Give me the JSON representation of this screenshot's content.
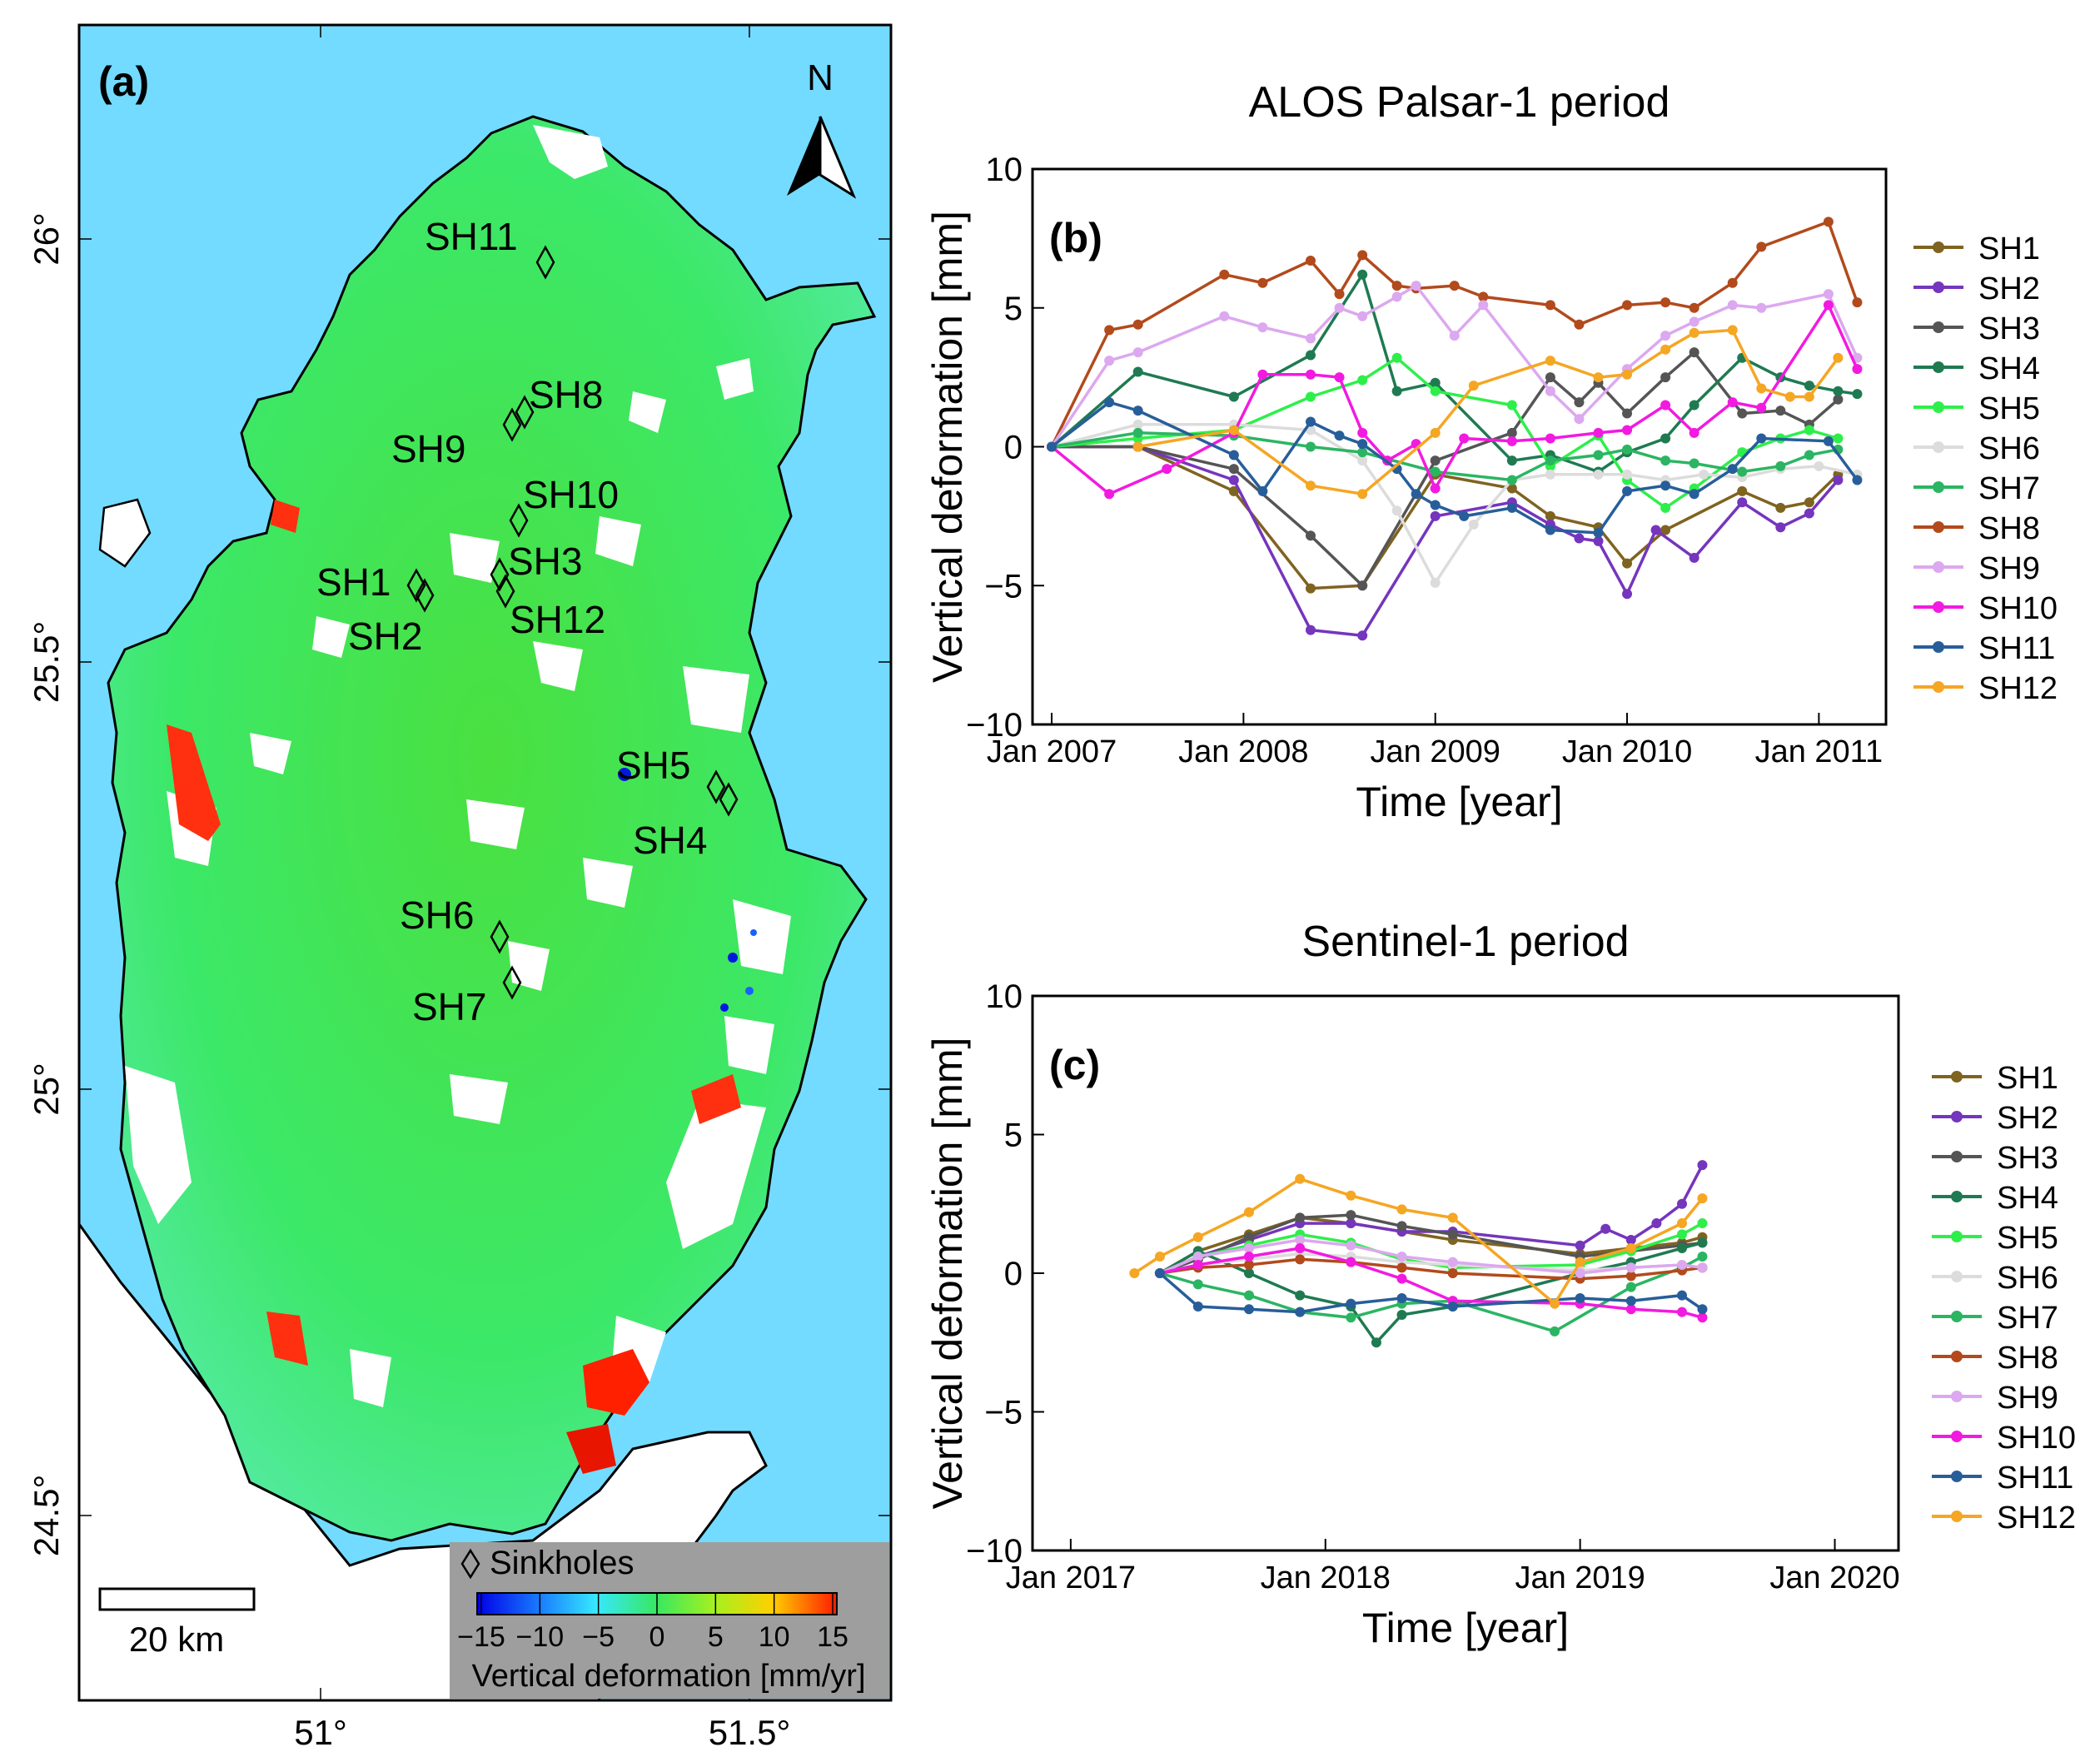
{
  "panel_a": {
    "label": "(a)",
    "north": "N",
    "lat_ticks": [
      "26°",
      "25.5°",
      "25°",
      "24.5°"
    ],
    "lon_ticks": [
      "51°",
      "51.5°"
    ],
    "scale_bar": "20 km",
    "legend_sinkholes": "Sinkholes",
    "colorbar_ticks": [
      "−15",
      "−10",
      "−5",
      "0",
      "5",
      "10",
      "15"
    ],
    "colorbar_label": "Vertical deformation [mm/yr]",
    "colors": {
      "sea": "#73dbff",
      "land": "#38e860",
      "nodata": "#ffffff",
      "legend_bg": "#9e9e9e"
    },
    "sinkholes": [
      "SH1",
      "SH2",
      "SH3",
      "SH4",
      "SH5",
      "SH6",
      "SH7",
      "SH8",
      "SH9",
      "SH10",
      "SH11",
      "SH12"
    ]
  },
  "series_colors": {
    "SH1": "#7f6320",
    "SH2": "#7535bd",
    "SH3": "#555555",
    "SH4": "#1f7a52",
    "SH5": "#2eef4a",
    "SH6": "#dcdcdc",
    "SH7": "#2bb562",
    "SH8": "#b24a1c",
    "SH9": "#dca8ef",
    "SH10": "#f21ae0",
    "SH11": "#275e9a",
    "SH12": "#f5a623"
  },
  "chart_data": [
    {
      "id": "b",
      "type": "line",
      "title": "ALOS Palsar-1 period",
      "panel_label": "(b)",
      "xlabel": "Time [year]",
      "ylabel": "Vertical deformation [mm]",
      "xlim": [
        2006.9,
        2011.35
      ],
      "ylim": [
        -10,
        10
      ],
      "xticks": [
        2007,
        2008,
        2009,
        2010,
        2011
      ],
      "xticklabels": [
        "Jan 2007",
        "Jan 2008",
        "Jan 2009",
        "Jan 2010",
        "Jan 2011"
      ],
      "yticks": [
        -10,
        -5,
        0,
        5,
        10
      ],
      "yticklabels": [
        "−10",
        "−5",
        "0",
        "5",
        "10"
      ],
      "series": [
        {
          "name": "SH1",
          "x": [
            2007.0,
            2007.45,
            2007.95,
            2008.35,
            2008.62,
            2009.0,
            2009.4,
            2009.6,
            2009.85,
            2010.0,
            2010.2,
            2010.6,
            2010.8,
            2010.95,
            2011.1
          ],
          "y": [
            0,
            0,
            -1.6,
            -5.1,
            -5.0,
            -1.0,
            -1.5,
            -2.5,
            -2.9,
            -4.2,
            -3.0,
            -1.6,
            -2.2,
            -2.0,
            -1.0
          ]
        },
        {
          "name": "SH2",
          "x": [
            2007.0,
            2007.45,
            2007.95,
            2008.35,
            2008.62,
            2009.0,
            2009.4,
            2009.6,
            2009.75,
            2009.85,
            2010.0,
            2010.15,
            2010.35,
            2010.6,
            2010.8,
            2010.95,
            2011.1
          ],
          "y": [
            0,
            0,
            -1.2,
            -6.6,
            -6.8,
            -2.5,
            -2.0,
            -2.8,
            -3.3,
            -3.4,
            -5.3,
            -3.0,
            -4.0,
            -2.0,
            -2.9,
            -2.4,
            -1.2
          ]
        },
        {
          "name": "SH3",
          "x": [
            2007.0,
            2007.45,
            2007.95,
            2008.35,
            2008.62,
            2009.0,
            2009.4,
            2009.6,
            2009.75,
            2009.85,
            2010.0,
            2010.2,
            2010.35,
            2010.6,
            2010.8,
            2010.95,
            2011.1
          ],
          "y": [
            0,
            0,
            -0.8,
            -3.2,
            -5.0,
            -0.5,
            0.5,
            2.5,
            1.6,
            2.3,
            1.2,
            2.5,
            3.4,
            1.2,
            1.3,
            0.8,
            1.7
          ]
        },
        {
          "name": "SH4",
          "x": [
            2007.0,
            2007.45,
            2007.95,
            2008.35,
            2008.62,
            2008.8,
            2009.0,
            2009.4,
            2009.6,
            2009.85,
            2010.0,
            2010.2,
            2010.35,
            2010.6,
            2010.8,
            2010.95,
            2011.1,
            2011.2
          ],
          "y": [
            0,
            2.7,
            1.8,
            3.3,
            6.2,
            2.0,
            2.3,
            -0.5,
            -0.3,
            -0.9,
            -0.2,
            0.3,
            1.5,
            3.2,
            2.5,
            2.2,
            2.0,
            1.9
          ]
        },
        {
          "name": "SH5",
          "x": [
            2007.0,
            2007.45,
            2007.95,
            2008.35,
            2008.62,
            2008.8,
            2009.0,
            2009.4,
            2009.6,
            2009.85,
            2010.0,
            2010.2,
            2010.35,
            2010.6,
            2010.8,
            2010.95,
            2011.1
          ],
          "y": [
            0,
            0.3,
            0.6,
            1.8,
            2.4,
            3.2,
            2.0,
            1.5,
            -0.7,
            0.4,
            -1.2,
            -2.2,
            -1.5,
            -0.2,
            0.3,
            0.6,
            0.3
          ]
        },
        {
          "name": "SH6",
          "x": [
            2007.0,
            2007.45,
            2007.95,
            2008.35,
            2008.62,
            2008.8,
            2009.0,
            2009.2,
            2009.4,
            2009.6,
            2009.85,
            2010.0,
            2010.2,
            2010.4,
            2010.6,
            2010.8,
            2011.0,
            2011.2
          ],
          "y": [
            0,
            0.8,
            0.8,
            0.6,
            -0.5,
            -2.3,
            -4.9,
            -2.8,
            -1.2,
            -1.0,
            -1.0,
            -1.0,
            -1.2,
            -1.0,
            -1.1,
            -0.8,
            -0.7,
            -1.0
          ]
        },
        {
          "name": "SH7",
          "x": [
            2007.0,
            2007.45,
            2007.95,
            2008.35,
            2008.62,
            2009.0,
            2009.4,
            2009.6,
            2009.85,
            2010.0,
            2010.2,
            2010.35,
            2010.6,
            2010.8,
            2010.95,
            2011.1
          ],
          "y": [
            0,
            0.5,
            0.4,
            0.0,
            -0.2,
            -0.9,
            -1.2,
            -0.5,
            -0.3,
            -0.1,
            -0.5,
            -0.6,
            -0.9,
            -0.7,
            -0.3,
            -0.1
          ]
        },
        {
          "name": "SH8",
          "x": [
            2007.0,
            2007.3,
            2007.45,
            2007.9,
            2008.1,
            2008.35,
            2008.5,
            2008.62,
            2008.8,
            2008.9,
            2009.1,
            2009.25,
            2009.6,
            2009.75,
            2010.0,
            2010.2,
            2010.35,
            2010.55,
            2010.7,
            2011.05,
            2011.2
          ],
          "y": [
            0,
            4.2,
            4.4,
            6.2,
            5.9,
            6.7,
            5.5,
            6.9,
            5.8,
            5.7,
            5.8,
            5.4,
            5.1,
            4.4,
            5.1,
            5.2,
            5.0,
            5.9,
            7.2,
            8.1,
            5.2
          ]
        },
        {
          "name": "SH9",
          "x": [
            2007.0,
            2007.3,
            2007.45,
            2007.9,
            2008.1,
            2008.35,
            2008.5,
            2008.62,
            2008.8,
            2008.9,
            2009.1,
            2009.25,
            2009.6,
            2009.75,
            2010.0,
            2010.2,
            2010.35,
            2010.55,
            2010.7,
            2011.05,
            2011.2
          ],
          "y": [
            0,
            3.1,
            3.4,
            4.7,
            4.3,
            3.9,
            5.0,
            4.7,
            5.4,
            5.8,
            4.0,
            5.1,
            2.0,
            1.0,
            2.8,
            4.0,
            4.5,
            5.1,
            5.0,
            5.5,
            3.2
          ]
        },
        {
          "name": "SH10",
          "x": [
            2007.0,
            2007.3,
            2007.6,
            2007.95,
            2008.1,
            2008.35,
            2008.5,
            2008.62,
            2008.75,
            2008.9,
            2009.0,
            2009.15,
            2009.4,
            2009.6,
            2009.85,
            2010.0,
            2010.2,
            2010.35,
            2010.55,
            2010.7,
            2011.05,
            2011.2
          ],
          "y": [
            0,
            -1.7,
            -0.8,
            0.5,
            2.6,
            2.6,
            2.5,
            0.5,
            -0.5,
            0.1,
            -1.5,
            0.3,
            0.2,
            0.3,
            0.5,
            0.6,
            1.5,
            0.5,
            1.6,
            1.4,
            5.1,
            2.8
          ]
        },
        {
          "name": "SH11",
          "x": [
            2007.0,
            2007.3,
            2007.45,
            2007.95,
            2008.1,
            2008.35,
            2008.5,
            2008.62,
            2008.8,
            2008.9,
            2009.0,
            2009.15,
            2009.4,
            2009.6,
            2009.85,
            2010.0,
            2010.2,
            2010.35,
            2010.55,
            2010.7,
            2011.05,
            2011.2
          ],
          "y": [
            0,
            1.6,
            1.3,
            -0.3,
            -1.6,
            0.9,
            0.4,
            0.1,
            -0.8,
            -1.7,
            -2.1,
            -2.5,
            -2.2,
            -3.0,
            -3.1,
            -1.6,
            -1.4,
            -1.7,
            -0.8,
            0.3,
            0.2,
            -1.2
          ]
        },
        {
          "name": "SH12",
          "x": [
            2007.45,
            2007.95,
            2008.35,
            2008.62,
            2009.0,
            2009.2,
            2009.6,
            2009.85,
            2010.0,
            2010.2,
            2010.35,
            2010.55,
            2010.7,
            2010.85,
            2010.95,
            2011.1
          ],
          "y": [
            0,
            0.6,
            -1.4,
            -1.7,
            0.5,
            2.2,
            3.1,
            2.5,
            2.6,
            3.5,
            4.1,
            4.2,
            2.1,
            1.8,
            1.8,
            3.2
          ]
        }
      ]
    },
    {
      "id": "c",
      "type": "line",
      "title": "Sentinel-1 period",
      "panel_label": "(c)",
      "xlabel": "Time [year]",
      "ylabel": "Vertical deformation [mm]",
      "xlim": [
        2016.85,
        2020.25
      ],
      "ylim": [
        -10,
        10
      ],
      "xticks": [
        2017,
        2018,
        2019,
        2020
      ],
      "xticklabels": [
        "Jan 2017",
        "Jan 2018",
        "Jan 2019",
        "Jan 2020"
      ],
      "yticks": [
        -10,
        -5,
        0,
        5,
        10
      ],
      "yticklabels": [
        "−10",
        "−5",
        "0",
        "5",
        "10"
      ],
      "series": [
        {
          "name": "SH1",
          "x": [
            2017.35,
            2017.5,
            2017.7,
            2017.9,
            2018.1,
            2018.3,
            2018.5,
            2019.0,
            2019.2,
            2019.4,
            2019.48
          ],
          "y": [
            0,
            0.8,
            1.4,
            2.0,
            1.8,
            1.5,
            1.2,
            0.7,
            0.9,
            1.1,
            1.3
          ]
        },
        {
          "name": "SH2",
          "x": [
            2017.35,
            2017.5,
            2017.7,
            2017.9,
            2018.1,
            2018.3,
            2018.5,
            2019.0,
            2019.1,
            2019.2,
            2019.3,
            2019.4,
            2019.48
          ],
          "y": [
            0,
            0.6,
            1.2,
            1.8,
            1.8,
            1.5,
            1.5,
            1.0,
            1.6,
            1.2,
            1.8,
            2.5,
            3.9
          ]
        },
        {
          "name": "SH3",
          "x": [
            2017.35,
            2017.5,
            2017.7,
            2017.9,
            2018.1,
            2018.3,
            2018.5,
            2019.0,
            2019.2,
            2019.4,
            2019.48
          ],
          "y": [
            0,
            0.5,
            1.3,
            2.0,
            2.1,
            1.7,
            1.4,
            0.6,
            0.8,
            1.0,
            1.1
          ]
        },
        {
          "name": "SH4",
          "x": [
            2017.35,
            2017.5,
            2017.7,
            2017.9,
            2018.1,
            2018.2,
            2018.3,
            2018.5,
            2019.0,
            2019.2,
            2019.4,
            2019.48
          ],
          "y": [
            0,
            0.8,
            0.0,
            -0.8,
            -1.2,
            -2.5,
            -1.5,
            -1.2,
            0.0,
            0.4,
            0.9,
            1.1
          ]
        },
        {
          "name": "SH5",
          "x": [
            2017.35,
            2017.5,
            2017.7,
            2017.9,
            2018.1,
            2018.3,
            2018.5,
            2019.0,
            2019.2,
            2019.4,
            2019.48
          ],
          "y": [
            0,
            0.6,
            1.0,
            1.4,
            1.1,
            0.5,
            0.2,
            0.3,
            0.8,
            1.4,
            1.8
          ]
        },
        {
          "name": "SH6",
          "x": [
            2017.35,
            2017.5,
            2017.7,
            2017.9,
            2018.1,
            2018.3,
            2018.5,
            2019.0,
            2019.2,
            2019.4,
            2019.48
          ],
          "y": [
            0,
            0.3,
            0.5,
            0.7,
            0.6,
            0.4,
            0.3,
            0.1,
            0.2,
            0.3,
            0.2
          ]
        },
        {
          "name": "SH7",
          "x": [
            2017.35,
            2017.5,
            2017.7,
            2017.9,
            2018.1,
            2018.3,
            2018.5,
            2018.9,
            2019.2,
            2019.4,
            2019.48
          ],
          "y": [
            0,
            -0.4,
            -0.8,
            -1.4,
            -1.6,
            -1.1,
            -1.0,
            -2.1,
            -0.5,
            0.2,
            0.6
          ]
        },
        {
          "name": "SH8",
          "x": [
            2017.35,
            2017.5,
            2017.7,
            2017.9,
            2018.1,
            2018.3,
            2018.5,
            2019.0,
            2019.2,
            2019.4,
            2019.48
          ],
          "y": [
            0,
            0.2,
            0.3,
            0.5,
            0.4,
            0.2,
            0.0,
            -0.2,
            -0.1,
            0.1,
            0.2
          ]
        },
        {
          "name": "SH9",
          "x": [
            2017.35,
            2017.5,
            2017.7,
            2017.9,
            2018.1,
            2018.3,
            2018.5,
            2019.0,
            2019.2,
            2019.4,
            2019.48
          ],
          "y": [
            0,
            0.6,
            0.9,
            1.2,
            1.0,
            0.6,
            0.4,
            0.0,
            0.2,
            0.3,
            0.2
          ]
        },
        {
          "name": "SH10",
          "x": [
            2017.35,
            2017.5,
            2017.7,
            2017.9,
            2018.1,
            2018.3,
            2018.5,
            2019.0,
            2019.2,
            2019.4,
            2019.48
          ],
          "y": [
            0,
            0.3,
            0.6,
            0.9,
            0.4,
            -0.2,
            -1.0,
            -1.1,
            -1.3,
            -1.4,
            -1.6
          ]
        },
        {
          "name": "SH11",
          "x": [
            2017.35,
            2017.5,
            2017.7,
            2017.9,
            2018.1,
            2018.3,
            2018.5,
            2019.0,
            2019.2,
            2019.4,
            2019.48
          ],
          "y": [
            0,
            -1.2,
            -1.3,
            -1.4,
            -1.1,
            -0.9,
            -1.2,
            -0.9,
            -1.0,
            -0.8,
            -1.3
          ]
        },
        {
          "name": "SH12",
          "x": [
            2017.25,
            2017.35,
            2017.5,
            2017.7,
            2017.9,
            2018.1,
            2018.3,
            2018.5,
            2018.9,
            2019.0,
            2019.2,
            2019.4,
            2019.48
          ],
          "y": [
            0,
            0.6,
            1.3,
            2.2,
            3.4,
            2.8,
            2.3,
            2.0,
            -1.1,
            0.4,
            0.9,
            1.8,
            2.7
          ]
        }
      ]
    }
  ]
}
